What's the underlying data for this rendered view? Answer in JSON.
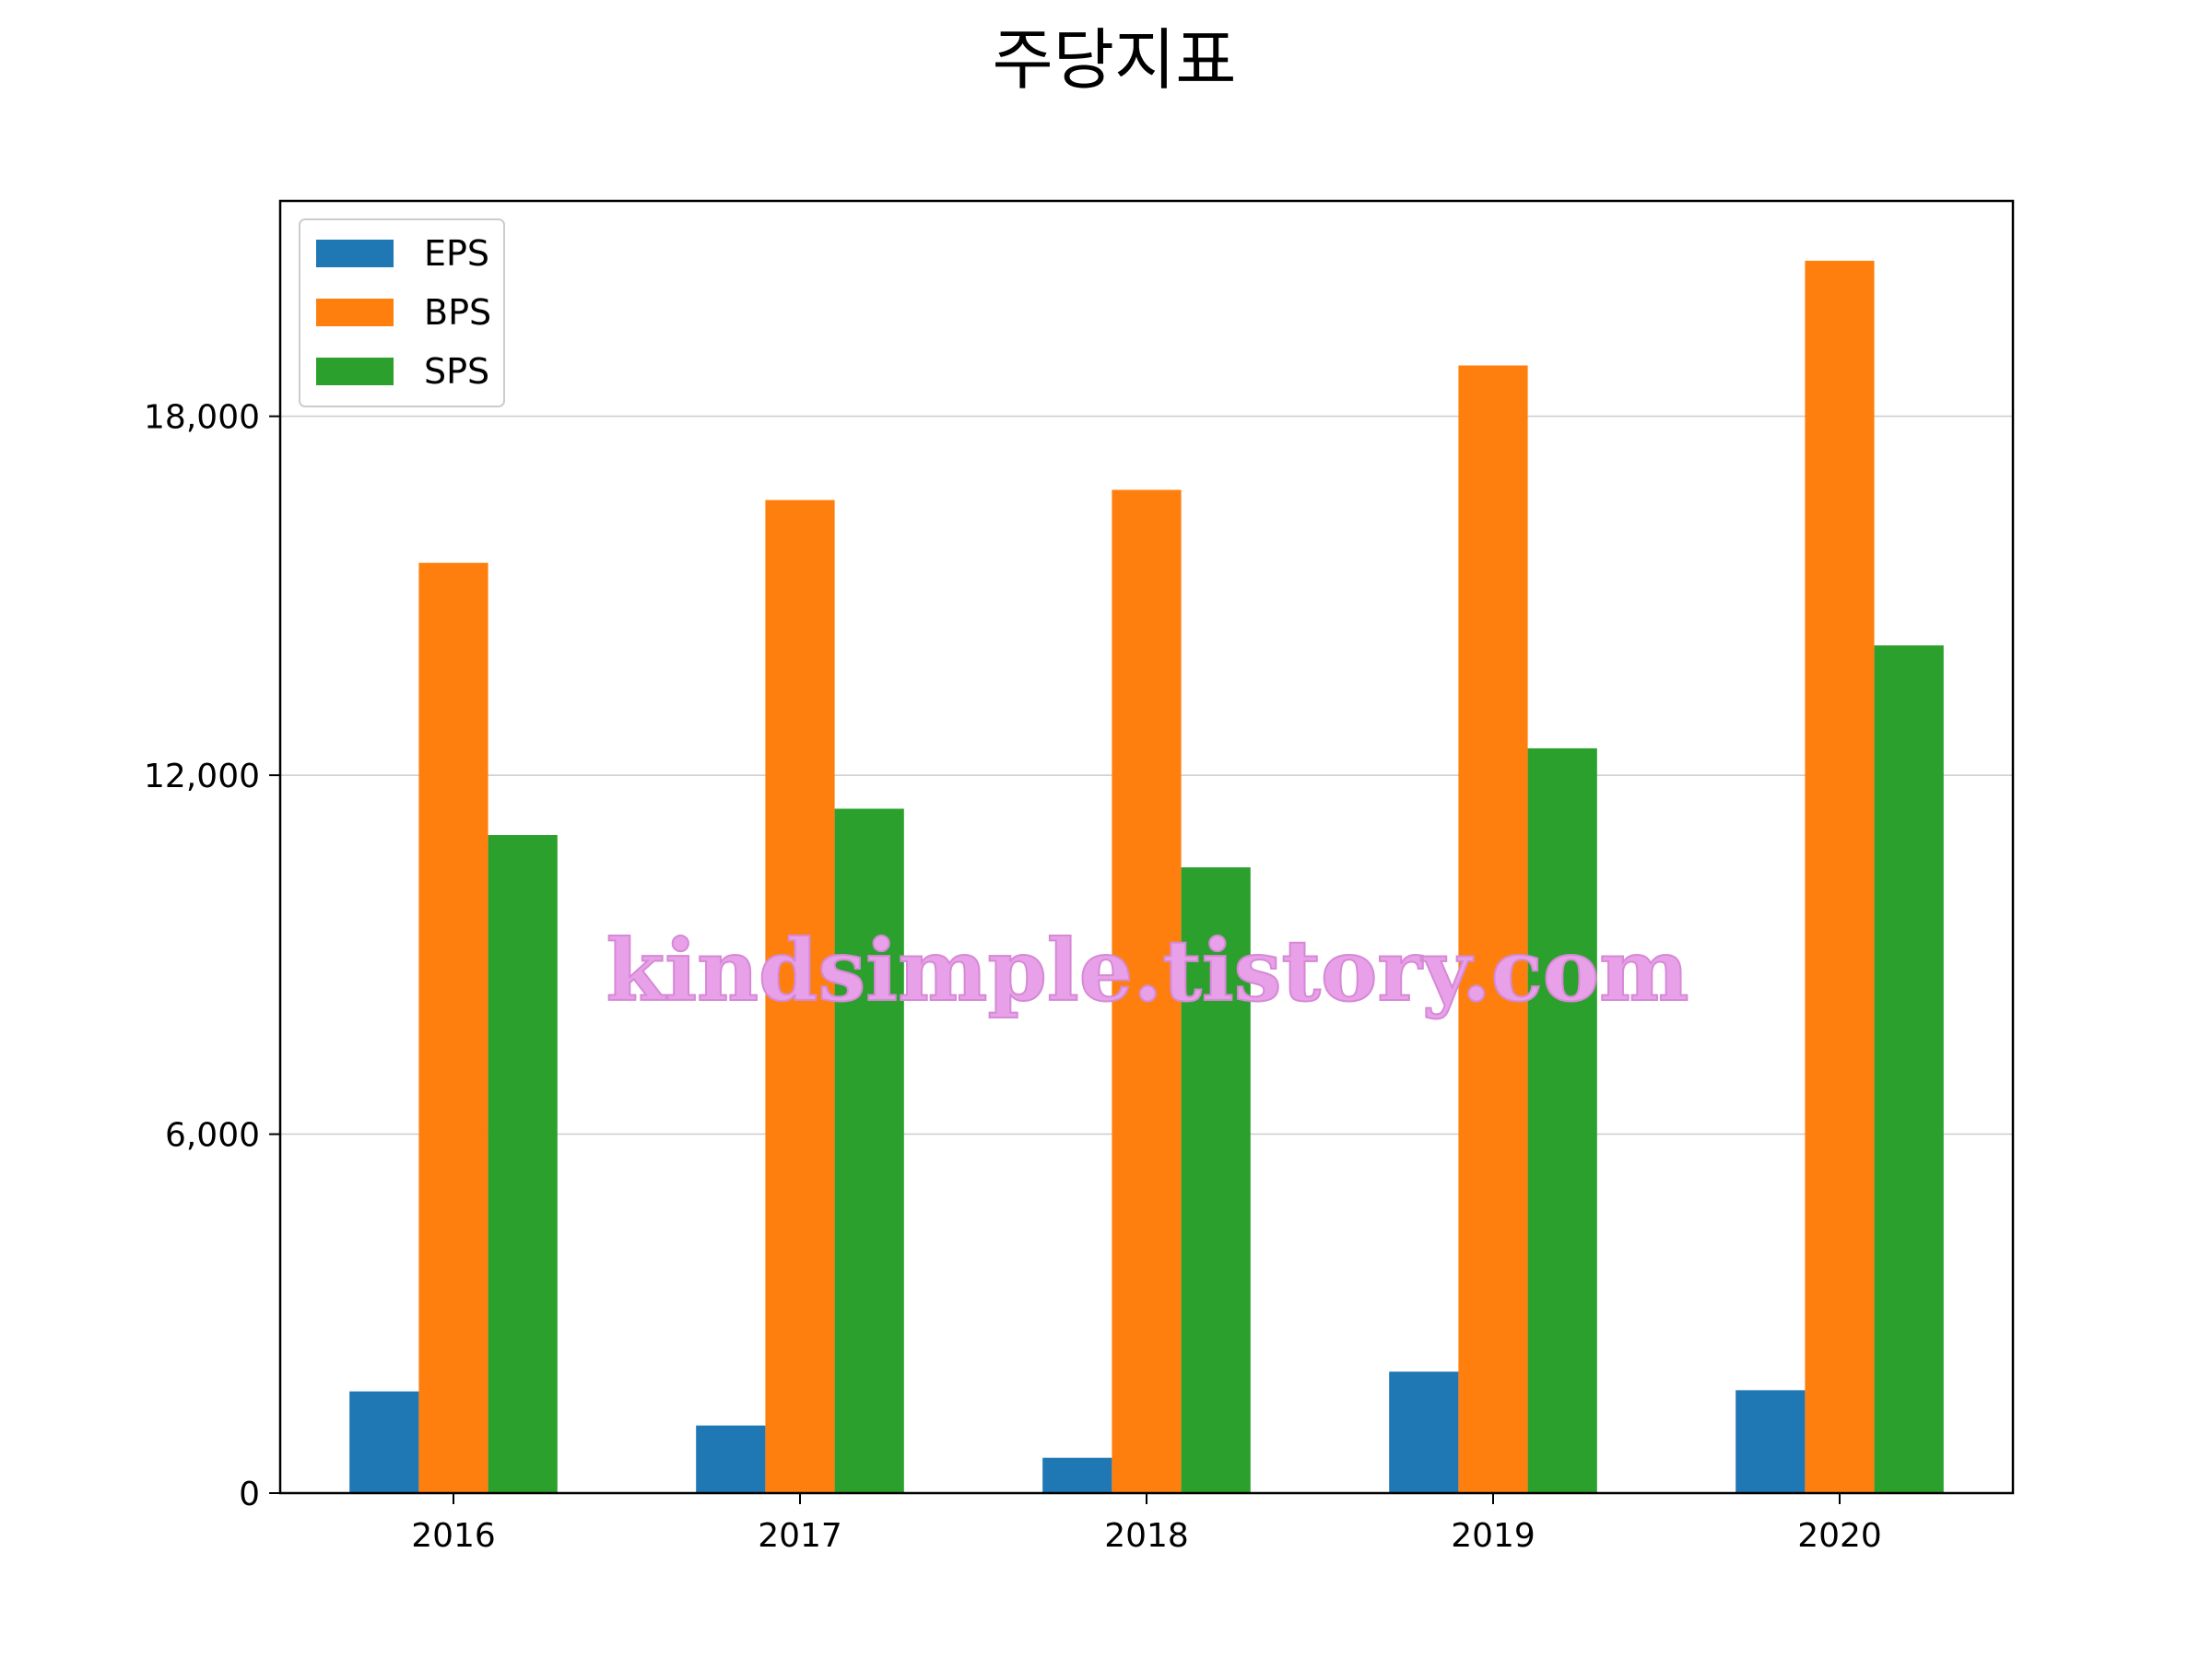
{
  "chart_data": {
    "type": "bar",
    "title": "주당지표",
    "categories": [
      "2016",
      "2017",
      "2018",
      "2019",
      "2020"
    ],
    "series": [
      {
        "name": "EPS",
        "color": "#1f77b4",
        "values": [
          1700,
          1130,
          590,
          2030,
          1720
        ]
      },
      {
        "name": "BPS",
        "color": "#ff7f0e",
        "values": [
          15550,
          16600,
          16770,
          18850,
          20600
        ]
      },
      {
        "name": "SPS",
        "color": "#2ca02c",
        "values": [
          11000,
          11440,
          10460,
          12450,
          14170
        ]
      }
    ],
    "y_ticks": [
      0,
      6000,
      12000,
      18000
    ],
    "y_tick_labels": [
      "0",
      "6,000",
      "12,000",
      "18,000"
    ],
    "ylim": [
      0,
      21600
    ],
    "xlabel": "",
    "ylabel": "",
    "grid": "horizontal",
    "legend_position": "top-left"
  },
  "watermark": "kindsimple.tistory.com"
}
